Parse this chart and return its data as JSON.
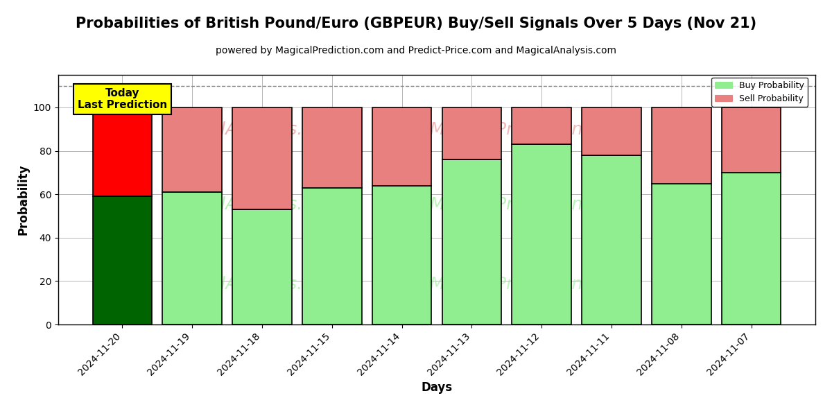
{
  "title": "Probabilities of British Pound/Euro (GBPEUR) Buy/Sell Signals Over 5 Days (Nov 21)",
  "subtitle": "powered by MagicalPrediction.com and Predict-Price.com and MagicalAnalysis.com",
  "xlabel": "Days",
  "ylabel": "Probability",
  "categories": [
    "2024-11-20",
    "2024-11-19",
    "2024-11-18",
    "2024-11-15",
    "2024-11-14",
    "2024-11-13",
    "2024-11-12",
    "2024-11-11",
    "2024-11-08",
    "2024-11-07"
  ],
  "buy_values": [
    59,
    61,
    53,
    63,
    64,
    76,
    83,
    78,
    65,
    70
  ],
  "sell_values": [
    41,
    39,
    47,
    37,
    36,
    24,
    17,
    22,
    35,
    30
  ],
  "today_bar_index": 0,
  "today_buy_color": "#006400",
  "today_sell_color": "#ff0000",
  "other_buy_color": "#90ee90",
  "other_sell_color": "#e88080",
  "today_annotation_text": "Today\nLast Prediction",
  "today_annotation_bg": "#ffff00",
  "legend_buy_label": "Buy Probability",
  "legend_sell_label": "Sell Probability",
  "ylim": [
    0,
    115
  ],
  "yticks": [
    0,
    20,
    40,
    60,
    80,
    100
  ],
  "dashed_line_y": 110,
  "background_color": "#ffffff",
  "grid_color": "#aaaaaa",
  "title_fontsize": 15,
  "subtitle_fontsize": 10,
  "axis_label_fontsize": 12,
  "tick_fontsize": 10
}
